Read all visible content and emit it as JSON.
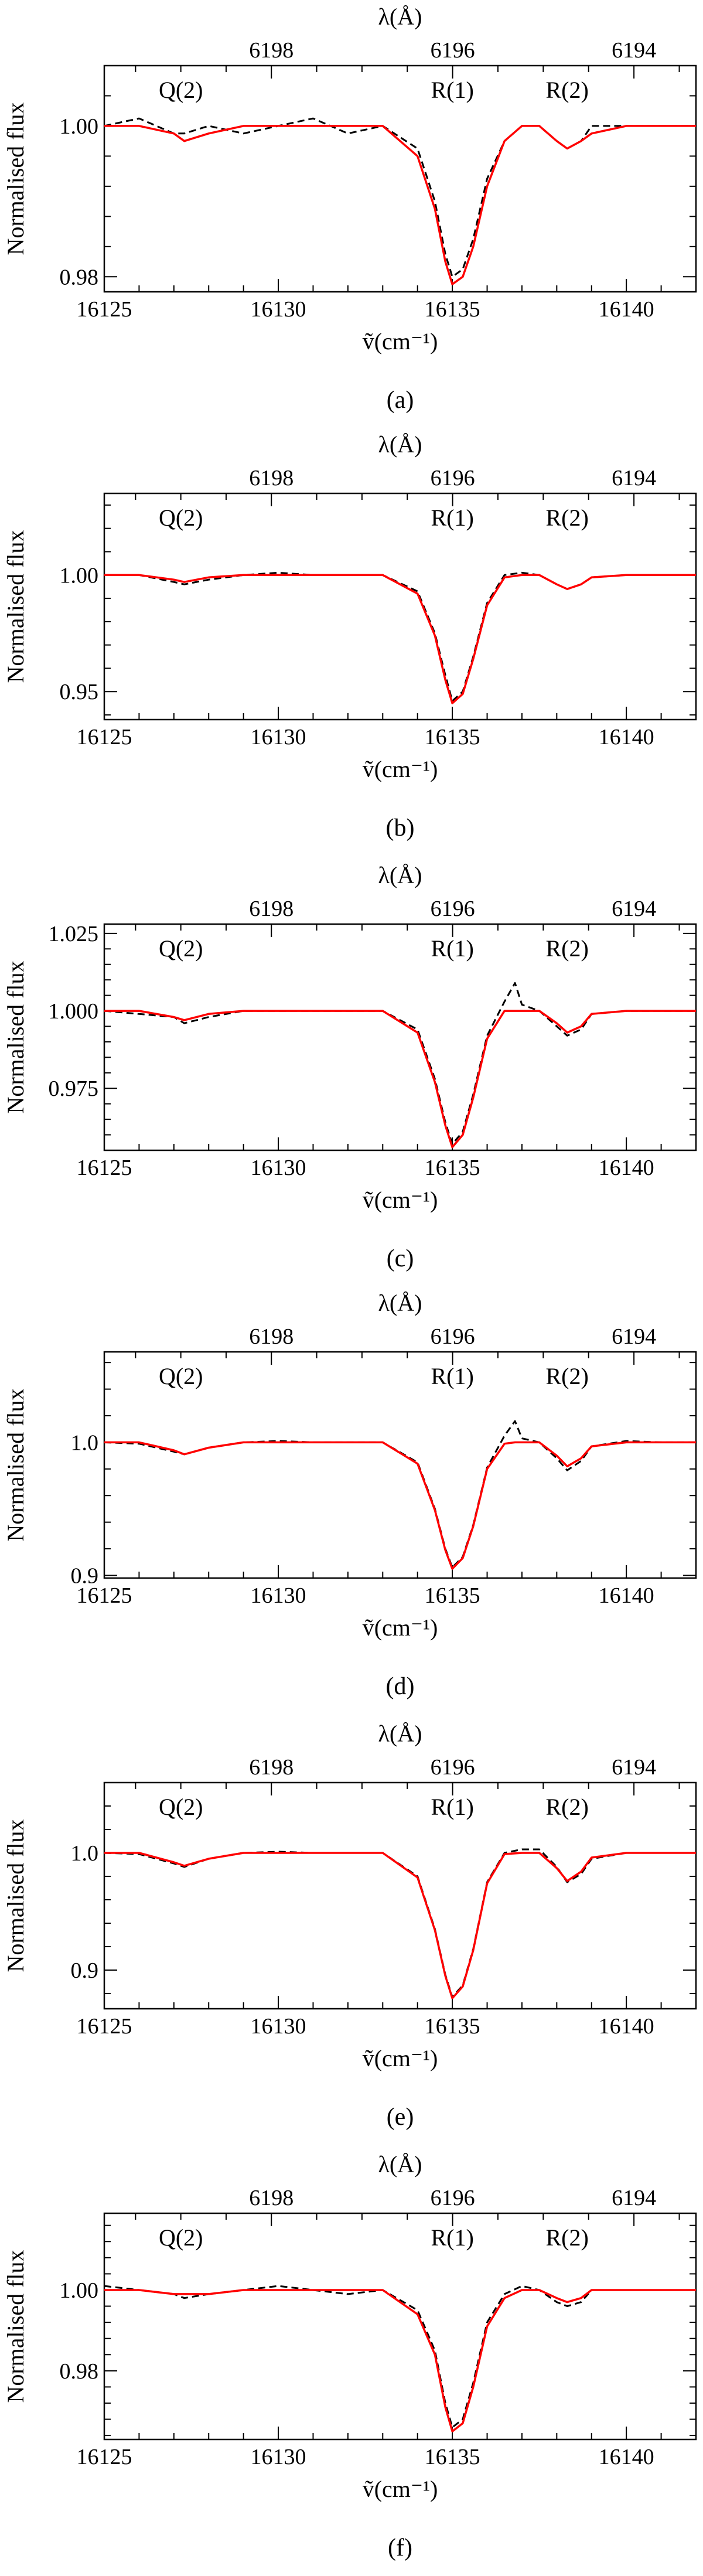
{
  "figure": {
    "panel_labels": [
      "(a)",
      "(b)",
      "(c)",
      "(d)",
      "(e)",
      "(f)"
    ],
    "x_axis_label": "ṽ(cm⁻¹)",
    "top_axis_label": "λ(Å)",
    "y_axis_label": "Normalised flux",
    "line_labels": [
      "Q(2)",
      "R(1)",
      "R(2)"
    ]
  },
  "chart_data": [
    {
      "type": "line",
      "panel": "(a)",
      "xlim": [
        16125,
        16142
      ],
      "ylim": [
        0.978,
        1.008
      ],
      "x_ticks": [
        16125,
        16130,
        16135,
        16140
      ],
      "y_ticks": [
        0.98,
        1.0
      ],
      "y_tick_labels": [
        "0.98",
        "1.00"
      ],
      "top_ticks": [
        6198,
        6196,
        6194
      ],
      "xlabel": "ṽ(cm⁻¹)",
      "ylabel": "Normalised flux",
      "top_label": "λ(Å)",
      "line_labels": [
        {
          "text": "Q(2)",
          "x": 16127.2
        },
        {
          "text": "R(1)",
          "x": 16135.0
        },
        {
          "text": "R(2)",
          "x": 16138.3
        }
      ],
      "series": [
        {
          "style": "dashed",
          "color": "#000000",
          "x": [
            16125,
            16126,
            16127,
            16127.3,
            16128,
            16129,
            16130,
            16131,
            16132,
            16133,
            16134,
            16134.5,
            16134.8,
            16135.0,
            16135.3,
            16135.6,
            16136,
            16136.5,
            16137,
            16137.5,
            16138,
            16138.3,
            16138.7,
            16139,
            16140,
            16141,
            16142
          ],
          "y": [
            1.0,
            1.001,
            0.999,
            0.999,
            1.0,
            0.999,
            1.0,
            1.001,
            0.999,
            1.0,
            0.997,
            0.99,
            0.983,
            0.98,
            0.981,
            0.985,
            0.993,
            0.998,
            1.0,
            1.0,
            0.998,
            0.997,
            0.998,
            1.0,
            1.0,
            1.0,
            1.0
          ]
        },
        {
          "style": "solid",
          "color": "#ff0000",
          "x": [
            16125,
            16126,
            16127,
            16127.3,
            16128,
            16129,
            16130,
            16131,
            16132,
            16133,
            16134,
            16134.5,
            16134.8,
            16135.0,
            16135.3,
            16135.6,
            16136,
            16136.5,
            16137,
            16137.5,
            16138,
            16138.3,
            16138.7,
            16139,
            16140,
            16141,
            16142
          ],
          "y": [
            1.0,
            1.0,
            0.999,
            0.998,
            0.999,
            1.0,
            1.0,
            1.0,
            1.0,
            1.0,
            0.996,
            0.989,
            0.982,
            0.979,
            0.98,
            0.984,
            0.992,
            0.998,
            1.0,
            1.0,
            0.998,
            0.997,
            0.998,
            0.999,
            1.0,
            1.0,
            1.0
          ]
        }
      ]
    },
    {
      "type": "line",
      "panel": "(b)",
      "xlim": [
        16125,
        16142
      ],
      "ylim": [
        0.938,
        1.035
      ],
      "x_ticks": [
        16125,
        16130,
        16135,
        16140
      ],
      "y_ticks": [
        0.95,
        1.0
      ],
      "y_tick_labels": [
        "0.95",
        "1.00"
      ],
      "top_ticks": [
        6198,
        6196,
        6194
      ],
      "xlabel": "ṽ(cm⁻¹)",
      "ylabel": "Normalised flux",
      "top_label": "λ(Å)",
      "line_labels": [
        {
          "text": "Q(2)",
          "x": 16127.2
        },
        {
          "text": "R(1)",
          "x": 16135.0
        },
        {
          "text": "R(2)",
          "x": 16138.3
        }
      ],
      "series": [
        {
          "style": "dashed",
          "color": "#000000",
          "x": [
            16125,
            16126,
            16127,
            16127.3,
            16128,
            16129,
            16130,
            16131,
            16132,
            16133,
            16134,
            16134.5,
            16134.8,
            16135.0,
            16135.3,
            16135.6,
            16136,
            16136.5,
            16137,
            16137.5,
            16138,
            16138.3,
            16138.7,
            16139,
            16140,
            16141,
            16142
          ],
          "y": [
            1.0,
            1.0,
            0.997,
            0.996,
            0.998,
            1.0,
            1.001,
            1.0,
            1.0,
            1.0,
            0.993,
            0.975,
            0.957,
            0.946,
            0.95,
            0.965,
            0.988,
            1.0,
            1.001,
            1.0,
            0.996,
            0.994,
            0.996,
            0.999,
            1.0,
            1.0,
            1.0
          ]
        },
        {
          "style": "solid",
          "color": "#ff0000",
          "x": [
            16125,
            16126,
            16127,
            16127.3,
            16128,
            16129,
            16130,
            16131,
            16132,
            16133,
            16134,
            16134.5,
            16134.8,
            16135.0,
            16135.3,
            16135.6,
            16136,
            16136.5,
            16137,
            16137.5,
            16138,
            16138.3,
            16138.7,
            16139,
            16140,
            16141,
            16142
          ],
          "y": [
            1.0,
            1.0,
            0.998,
            0.997,
            0.999,
            1.0,
            1.0,
            1.0,
            1.0,
            1.0,
            0.992,
            0.974,
            0.955,
            0.945,
            0.949,
            0.964,
            0.987,
            0.999,
            1.0,
            1.0,
            0.996,
            0.994,
            0.996,
            0.999,
            1.0,
            1.0,
            1.0
          ]
        }
      ]
    },
    {
      "type": "line",
      "panel": "(c)",
      "xlim": [
        16125,
        16142
      ],
      "ylim": [
        0.955,
        1.028
      ],
      "x_ticks": [
        16125,
        16130,
        16135,
        16140
      ],
      "y_ticks": [
        0.975,
        1.0,
        1.025
      ],
      "y_tick_labels": [
        "0.975",
        "1.000",
        "1.025"
      ],
      "top_ticks": [
        6198,
        6196,
        6194
      ],
      "xlabel": "ṽ(cm⁻¹)",
      "ylabel": "Normalised flux",
      "top_label": "λ(Å)",
      "line_labels": [
        {
          "text": "Q(2)",
          "x": 16127.2
        },
        {
          "text": "R(1)",
          "x": 16135.0
        },
        {
          "text": "R(2)",
          "x": 16138.3
        }
      ],
      "series": [
        {
          "style": "dashed",
          "color": "#000000",
          "x": [
            16125,
            16126,
            16127,
            16127.3,
            16128,
            16129,
            16130,
            16131,
            16132,
            16133,
            16134,
            16134.5,
            16134.8,
            16135.0,
            16135.3,
            16135.6,
            16136,
            16136.5,
            16136.8,
            16137,
            16137.5,
            16138,
            16138.3,
            16138.7,
            16139,
            16140,
            16141,
            16142
          ],
          "y": [
            1.0,
            0.999,
            0.998,
            0.996,
            0.998,
            1.0,
            1.0,
            1.0,
            1.0,
            1.0,
            0.994,
            0.978,
            0.964,
            0.957,
            0.961,
            0.973,
            0.992,
            1.003,
            1.009,
            1.002,
            1.0,
            0.995,
            0.992,
            0.994,
            0.999,
            1.0,
            1.0,
            1.0
          ]
        },
        {
          "style": "solid",
          "color": "#ff0000",
          "x": [
            16125,
            16126,
            16127,
            16127.3,
            16128,
            16129,
            16130,
            16131,
            16132,
            16133,
            16134,
            16134.5,
            16134.8,
            16135.0,
            16135.3,
            16135.6,
            16136,
            16136.5,
            16136.8,
            16137,
            16137.5,
            16138,
            16138.3,
            16138.7,
            16139,
            16140,
            16141,
            16142
          ],
          "y": [
            1.0,
            1.0,
            0.998,
            0.997,
            0.999,
            1.0,
            1.0,
            1.0,
            1.0,
            1.0,
            0.993,
            0.977,
            0.963,
            0.956,
            0.96,
            0.972,
            0.991,
            1.0,
            1.0,
            1.0,
            1.0,
            0.996,
            0.993,
            0.995,
            0.999,
            1.0,
            1.0,
            1.0
          ]
        }
      ]
    },
    {
      "type": "line",
      "panel": "(d)",
      "xlim": [
        16125,
        16142
      ],
      "ylim": [
        0.898,
        1.068
      ],
      "x_ticks": [
        16125,
        16130,
        16135,
        16140
      ],
      "y_ticks": [
        0.9,
        1.0
      ],
      "y_tick_labels": [
        "0.9",
        "1.0"
      ],
      "top_ticks": [
        6198,
        6196,
        6194
      ],
      "xlabel": "ṽ(cm⁻¹)",
      "ylabel": "Normalised flux",
      "top_label": "λ(Å)",
      "line_labels": [
        {
          "text": "Q(2)",
          "x": 16127.2
        },
        {
          "text": "R(1)",
          "x": 16135.0
        },
        {
          "text": "R(2)",
          "x": 16138.3
        }
      ],
      "series": [
        {
          "style": "dashed",
          "color": "#000000",
          "x": [
            16125,
            16126,
            16127,
            16127.3,
            16128,
            16129,
            16130,
            16131,
            16132,
            16133,
            16134,
            16134.5,
            16134.8,
            16135.0,
            16135.3,
            16135.6,
            16136,
            16136.5,
            16136.8,
            16137,
            16137.5,
            16138,
            16138.3,
            16138.7,
            16139,
            16140,
            16141,
            16142
          ],
          "y": [
            1.0,
            0.999,
            0.993,
            0.991,
            0.996,
            1.0,
            1.001,
            1.0,
            1.0,
            1.0,
            0.985,
            0.95,
            0.92,
            0.906,
            0.914,
            0.938,
            0.981,
            1.005,
            1.016,
            1.003,
            1.0,
            0.988,
            0.979,
            0.986,
            0.997,
            1.001,
            1.0,
            1.0
          ]
        },
        {
          "style": "solid",
          "color": "#ff0000",
          "x": [
            16125,
            16126,
            16127,
            16127.3,
            16128,
            16129,
            16130,
            16131,
            16132,
            16133,
            16134,
            16134.5,
            16134.8,
            16135.0,
            16135.3,
            16135.6,
            16136,
            16136.5,
            16136.8,
            16137,
            16137.5,
            16138,
            16138.3,
            16138.7,
            16139,
            16140,
            16141,
            16142
          ],
          "y": [
            1.0,
            1.0,
            0.994,
            0.991,
            0.996,
            1.0,
            1.0,
            1.0,
            1.0,
            1.0,
            0.984,
            0.949,
            0.919,
            0.905,
            0.913,
            0.937,
            0.98,
            0.999,
            1.0,
            1.0,
            1.0,
            0.99,
            0.982,
            0.988,
            0.997,
            1.0,
            1.0,
            1.0
          ]
        }
      ]
    },
    {
      "type": "line",
      "panel": "(e)",
      "xlim": [
        16125,
        16142
      ],
      "ylim": [
        0.867,
        1.06
      ],
      "x_ticks": [
        16125,
        16130,
        16135,
        16140
      ],
      "y_ticks": [
        0.9,
        1.0
      ],
      "y_tick_labels": [
        "0.9",
        "1.0"
      ],
      "top_ticks": [
        6198,
        6196,
        6194
      ],
      "xlabel": "ṽ(cm⁻¹)",
      "ylabel": "Normalised flux",
      "top_label": "λ(Å)",
      "line_labels": [
        {
          "text": "Q(2)",
          "x": 16127.2
        },
        {
          "text": "R(1)",
          "x": 16135.0
        },
        {
          "text": "R(2)",
          "x": 16138.3
        }
      ],
      "series": [
        {
          "style": "dashed",
          "color": "#000000",
          "x": [
            16125,
            16126,
            16127,
            16127.3,
            16128,
            16129,
            16130,
            16131,
            16132,
            16133,
            16134,
            16134.5,
            16134.8,
            16135.0,
            16135.3,
            16135.6,
            16136,
            16136.5,
            16137,
            16137.5,
            16138,
            16138.3,
            16138.7,
            16139,
            16140,
            16141,
            16142
          ],
          "y": [
            1.0,
            0.999,
            0.991,
            0.988,
            0.995,
            1.0,
            1.001,
            1.0,
            1.0,
            1.0,
            0.98,
            0.935,
            0.896,
            0.877,
            0.887,
            0.918,
            0.975,
            1.0,
            1.003,
            1.003,
            0.988,
            0.975,
            0.982,
            0.995,
            1.0,
            1.0,
            1.0
          ]
        },
        {
          "style": "solid",
          "color": "#ff0000",
          "x": [
            16125,
            16126,
            16127,
            16127.3,
            16128,
            16129,
            16130,
            16131,
            16132,
            16133,
            16134,
            16134.5,
            16134.8,
            16135.0,
            16135.3,
            16135.6,
            16136,
            16136.5,
            16137,
            16137.5,
            16138,
            16138.3,
            16138.7,
            16139,
            16140,
            16141,
            16142
          ],
          "y": [
            1.0,
            1.0,
            0.992,
            0.989,
            0.995,
            1.0,
            1.0,
            1.0,
            1.0,
            1.0,
            0.979,
            0.934,
            0.895,
            0.876,
            0.886,
            0.917,
            0.974,
            0.999,
            1.0,
            1.0,
            0.987,
            0.976,
            0.984,
            0.996,
            1.0,
            1.0,
            1.0
          ]
        }
      ]
    },
    {
      "type": "line",
      "panel": "(f)",
      "xlim": [
        16125,
        16142
      ],
      "ylim": [
        0.963,
        1.019
      ],
      "x_ticks": [
        16125,
        16130,
        16135,
        16140
      ],
      "y_ticks": [
        0.98,
        1.0
      ],
      "y_tick_labels": [
        "0.98",
        "1.00"
      ],
      "top_ticks": [
        6198,
        6196,
        6194
      ],
      "xlabel": "ṽ(cm⁻¹)",
      "ylabel": "Normalised flux",
      "top_label": "λ(Å)",
      "line_labels": [
        {
          "text": "Q(2)",
          "x": 16127.2
        },
        {
          "text": "R(1)",
          "x": 16135.0
        },
        {
          "text": "R(2)",
          "x": 16138.3
        }
      ],
      "series": [
        {
          "style": "dashed",
          "color": "#000000",
          "x": [
            16125,
            16126,
            16127,
            16127.3,
            16128,
            16129,
            16130,
            16131,
            16132,
            16133,
            16134,
            16134.5,
            16134.8,
            16135.0,
            16135.3,
            16135.6,
            16136,
            16136.5,
            16137,
            16137.5,
            16138,
            16138.3,
            16138.7,
            16139,
            16140,
            16141,
            16142
          ],
          "y": [
            1.001,
            1.0,
            0.999,
            0.998,
            0.999,
            1.0,
            1.001,
            1.0,
            0.999,
            1.0,
            0.995,
            0.985,
            0.972,
            0.966,
            0.968,
            0.977,
            0.992,
            0.999,
            1.001,
            1.0,
            0.997,
            0.996,
            0.997,
            1.0,
            1.0,
            1.0,
            1.0
          ]
        },
        {
          "style": "solid",
          "color": "#ff0000",
          "x": [
            16125,
            16126,
            16127,
            16127.3,
            16128,
            16129,
            16130,
            16131,
            16132,
            16133,
            16134,
            16134.5,
            16134.8,
            16135.0,
            16135.3,
            16135.6,
            16136,
            16136.5,
            16137,
            16137.5,
            16138,
            16138.3,
            16138.7,
            16139,
            16140,
            16141,
            16142
          ],
          "y": [
            1.0,
            1.0,
            0.999,
            0.999,
            0.999,
            1.0,
            1.0,
            1.0,
            1.0,
            1.0,
            0.994,
            0.984,
            0.971,
            0.965,
            0.967,
            0.976,
            0.991,
            0.998,
            1.0,
            1.0,
            0.998,
            0.997,
            0.998,
            1.0,
            1.0,
            1.0,
            1.0
          ]
        }
      ]
    }
  ]
}
